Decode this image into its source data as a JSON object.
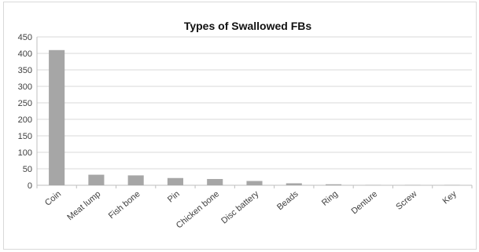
{
  "chart_data": {
    "type": "bar",
    "title": "Types of Swallowed FBs",
    "xlabel": "",
    "ylabel": "",
    "categories": [
      "Coin",
      "Meat lump",
      "Fish bone",
      "Pin",
      "Chicken bone",
      "Disc battery",
      "Beads",
      "Ring",
      "Denture",
      "Screw",
      "Key"
    ],
    "values": [
      410,
      32,
      30,
      22,
      19,
      13,
      6,
      3,
      1,
      1,
      1
    ],
    "ylim": [
      0,
      450
    ],
    "yticks": [
      "0",
      "50",
      "100",
      "150",
      "200",
      "250",
      "300",
      "350",
      "400",
      "450"
    ],
    "grid": true,
    "legend": "none",
    "bar_color": "#a6a6a6",
    "grid_color": "#d9d9d9",
    "axis_color": "#bfbfbf"
  }
}
